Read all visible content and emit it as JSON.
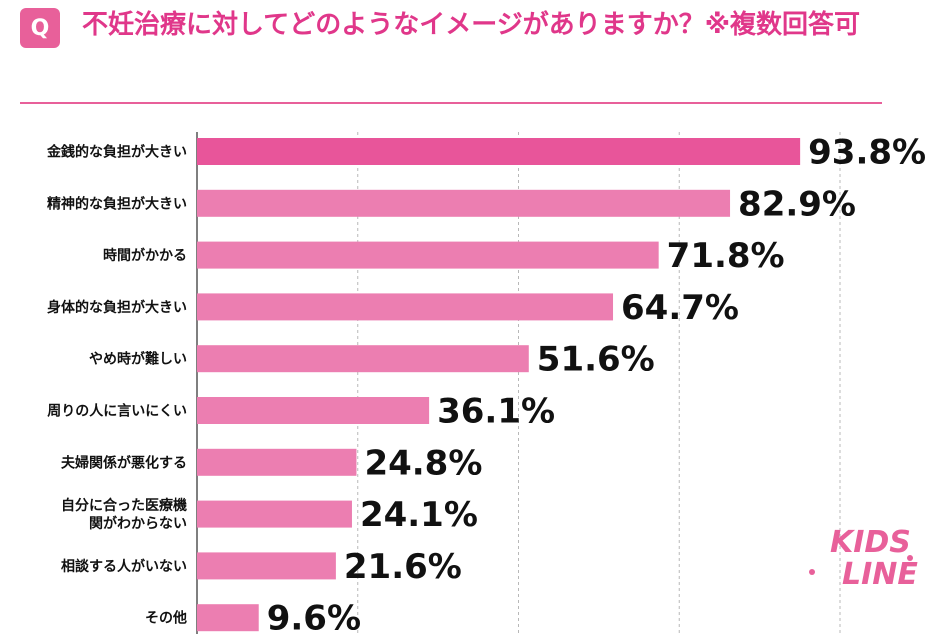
{
  "question": {
    "badge": "Q",
    "text": "不妊治療に対してどのようなイメージがありますか？※複数回答可"
  },
  "chart_data": {
    "type": "bar",
    "orientation": "horizontal",
    "unit": "%",
    "categories": [
      [
        "金銭的な負担が大きい"
      ],
      [
        "精神的な負担が大きい"
      ],
      [
        "時間がかかる"
      ],
      [
        "身体的な負担が大きい"
      ],
      [
        "やめ時が難しい"
      ],
      [
        "周りの人に言いにくい"
      ],
      [
        "夫婦関係が悪化する"
      ],
      [
        "自分に合った医療機",
        "関がわからない"
      ],
      [
        "相談する人がいない"
      ],
      [
        "その他"
      ]
    ],
    "values": [
      93.8,
      82.9,
      71.8,
      64.7,
      51.6,
      36.1,
      24.8,
      24.1,
      21.6,
      9.6
    ],
    "value_labels": [
      "93.8%",
      "82.9%",
      "71.8%",
      "64.7%",
      "51.6%",
      "36.1%",
      "24.8%",
      "24.1%",
      "21.6%",
      "9.6%"
    ],
    "xlim": [
      0,
      100
    ],
    "grid": true,
    "colors": {
      "highlight": "#e8559a",
      "bar": "#ec7eb1",
      "gridline": "#b8b8b8",
      "axis": "#555555"
    }
  },
  "logo": {
    "line1": "KIDS",
    "line2": "LINE",
    "color": "#e8609a"
  }
}
